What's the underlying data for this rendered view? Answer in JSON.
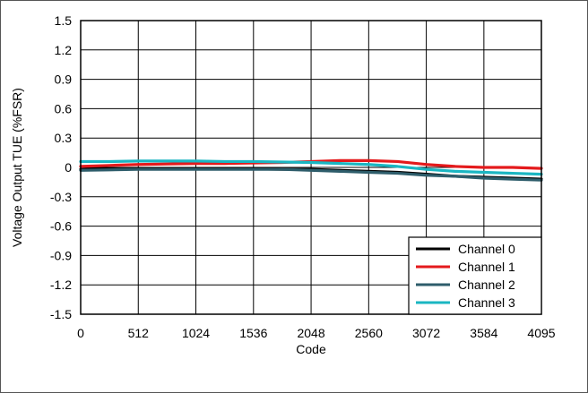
{
  "chart_data": {
    "type": "line",
    "title": "",
    "xlabel": "Code",
    "ylabel": "Voltage Output TUE (%FSR)",
    "xlim": [
      0,
      4095
    ],
    "ylim": [
      -1.5,
      1.5
    ],
    "x_ticks": [
      0,
      512,
      1024,
      1536,
      2048,
      2560,
      3072,
      3584,
      4095
    ],
    "x_tick_labels": [
      "0",
      "512",
      "1024",
      "1536",
      "2048",
      "2560",
      "3072",
      "3584",
      "4095"
    ],
    "y_ticks": [
      1.5,
      1.2,
      0.9,
      0.6,
      0.3,
      0,
      -0.3,
      -0.6,
      -0.9,
      -1.2,
      -1.5
    ],
    "y_tick_labels": [
      "1.5",
      "1.2",
      "0.9",
      "0.6",
      "0.3",
      "0",
      "-0.3",
      "-0.6",
      "-0.9",
      "-1.2",
      "-1.5"
    ],
    "grid": true,
    "legend_position": "bottom-right",
    "x": [
      0,
      256,
      512,
      768,
      1024,
      1280,
      1536,
      1792,
      2048,
      2304,
      2560,
      2816,
      3072,
      3328,
      3584,
      3840,
      4095
    ],
    "series": [
      {
        "name": "Channel 0",
        "color": "#000000",
        "values": [
          -0.02,
          -0.015,
          -0.01,
          -0.01,
          -0.01,
          -0.01,
          -0.015,
          -0.02,
          -0.02,
          -0.03,
          -0.04,
          -0.05,
          -0.07,
          -0.09,
          -0.1,
          -0.11,
          -0.12
        ]
      },
      {
        "name": "Channel 1",
        "color": "#e41a1c",
        "values": [
          0.01,
          0.02,
          0.03,
          0.035,
          0.04,
          0.04,
          0.045,
          0.05,
          0.06,
          0.07,
          0.07,
          0.06,
          0.03,
          0.01,
          0.0,
          0.0,
          -0.01
        ]
      },
      {
        "name": "Channel 2",
        "color": "#2e5d6b",
        "values": [
          -0.03,
          -0.025,
          -0.02,
          -0.02,
          -0.02,
          -0.02,
          -0.02,
          -0.02,
          -0.03,
          -0.04,
          -0.05,
          -0.06,
          -0.08,
          -0.09,
          -0.11,
          -0.12,
          -0.13
        ]
      },
      {
        "name": "Channel 3",
        "color": "#1ab6c2",
        "values": [
          0.06,
          0.06,
          0.065,
          0.065,
          0.065,
          0.06,
          0.06,
          0.055,
          0.05,
          0.04,
          0.03,
          0.01,
          -0.02,
          -0.04,
          -0.05,
          -0.06,
          -0.07
        ]
      }
    ]
  }
}
